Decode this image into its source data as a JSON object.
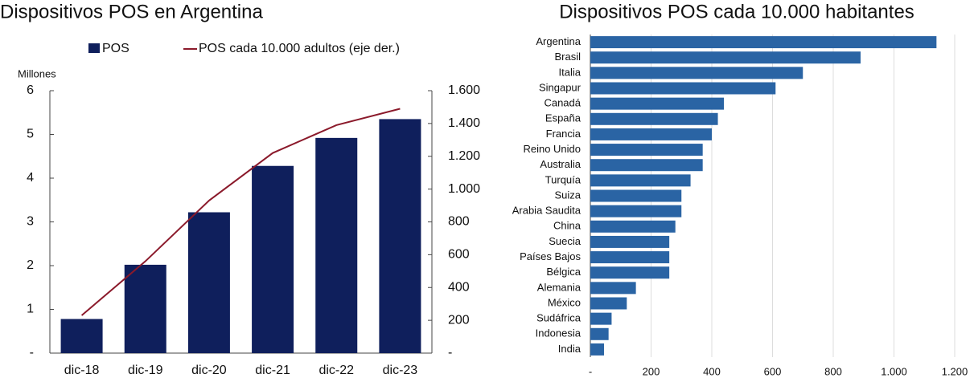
{
  "chart_data": [
    {
      "type": "bar",
      "title": "Dispositivos POS en Argentina",
      "ylabel": "Millones",
      "categories": [
        "dic-18",
        "dic-19",
        "dic-20",
        "dic-21",
        "dic-22",
        "dic-23"
      ],
      "series": [
        {
          "name": "POS",
          "type": "bar",
          "color": "#0f1f5c",
          "values": [
            0.78,
            2.02,
            3.22,
            4.28,
            4.92,
            5.35
          ]
        },
        {
          "name": "POS cada 10.000 adultos (eje der.)",
          "type": "line",
          "axis": "y2",
          "color": "#8b1a2b",
          "values": [
            230,
            560,
            930,
            1220,
            1390,
            1490
          ]
        }
      ],
      "ylim": [
        0,
        6
      ],
      "yticks": [
        {
          "value": 0,
          "label": "-"
        },
        1,
        2,
        3,
        4,
        5,
        6
      ],
      "y2lim": [
        0,
        1600
      ],
      "y2ticks": [
        {
          "value": 0,
          "label": "-"
        },
        200,
        400,
        600,
        800,
        {
          "value": 1000,
          "label": "1.000"
        },
        {
          "value": 1200,
          "label": "1.200"
        },
        {
          "value": 1400,
          "label": "1.400"
        },
        {
          "value": 1600,
          "label": "1.600"
        }
      ],
      "legend": "top"
    },
    {
      "type": "barh",
      "title": "Dispositivos POS cada 10.000 habitantes",
      "color": "#2a64a4",
      "categories": [
        "Argentina",
        "Brasil",
        "Italia",
        "Singapur",
        "Canadá",
        "España",
        "Francia",
        "Reino Unido",
        "Australia",
        "Turquía",
        "Suiza",
        "Arabia Saudita",
        "China",
        "Suecia",
        "Países Bajos",
        "Bélgica",
        "Alemania",
        "México",
        "Sudáfrica",
        "Indonesia",
        "India"
      ],
      "values": [
        1140,
        890,
        700,
        610,
        440,
        420,
        400,
        370,
        370,
        330,
        300,
        300,
        280,
        260,
        260,
        260,
        150,
        120,
        70,
        60,
        45
      ],
      "xlim": [
        0,
        1200
      ],
      "xticks": [
        {
          "value": 0,
          "label": "-"
        },
        200,
        400,
        600,
        800,
        {
          "value": 1000,
          "label": "1.000"
        },
        {
          "value": 1200,
          "label": "1.200"
        }
      ],
      "grid": true
    }
  ]
}
